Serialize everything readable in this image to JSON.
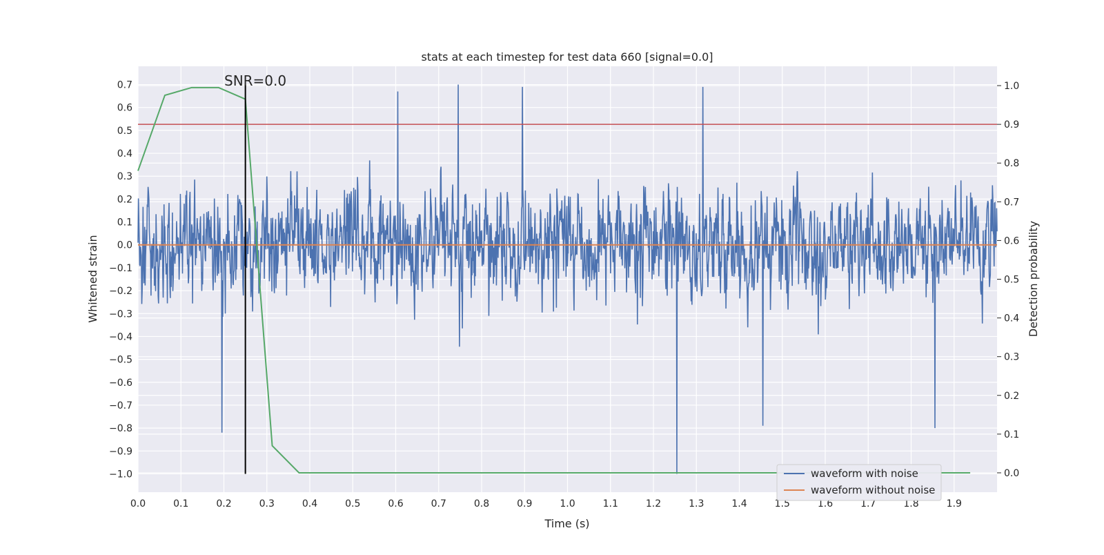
{
  "chart_data": {
    "type": "line",
    "title": "stats at each timestep for test data 660 [signal=0.0]",
    "xlabel": "Time (s)",
    "ylabel": "Whitened strain",
    "y2label": "Detection probability",
    "annotation": "SNR=0.0",
    "xlim": [
      0.0,
      2.0
    ],
    "ylim": [
      -1.08,
      0.78
    ],
    "y2lim": [
      -0.05,
      1.05
    ],
    "xticks": [
      0.0,
      0.1,
      0.2,
      0.3,
      0.4,
      0.5,
      0.6,
      0.7,
      0.8,
      0.9,
      1.0,
      1.1,
      1.2,
      1.3,
      1.4,
      1.5,
      1.6,
      1.7,
      1.8,
      1.9
    ],
    "xtick_labels": [
      "0.0",
      "0.1",
      "0.2",
      "0.3",
      "0.4",
      "0.5",
      "0.6",
      "0.7",
      "0.8",
      "0.9",
      "1.0",
      "1.1",
      "1.2",
      "1.3",
      "1.4",
      "1.5",
      "1.6",
      "1.7",
      "1.8",
      "1.9"
    ],
    "yticks": [
      0.7,
      0.6,
      0.5,
      0.4,
      0.3,
      0.2,
      0.1,
      0.0,
      -0.1,
      -0.2,
      -0.3,
      -0.4,
      -0.5,
      -0.6,
      -0.7,
      -0.8,
      -0.9,
      -1.0
    ],
    "ytick_labels": [
      "0.7",
      "0.6",
      "0.5",
      "0.4",
      "0.3",
      "0.2",
      "0.1",
      "0.0",
      "−0.1",
      "−0.2",
      "−0.3",
      "−0.4",
      "−0.5",
      "−0.6",
      "−0.7",
      "−0.8",
      "−0.9",
      "−1.0"
    ],
    "y2ticks": [
      1.0,
      0.9,
      0.8,
      0.7,
      0.6,
      0.5,
      0.4,
      0.3,
      0.2,
      0.1,
      0.0
    ],
    "y2tick_labels": [
      "1.0",
      "0.9",
      "0.8",
      "0.7",
      "0.6",
      "0.5",
      "0.4",
      "0.3",
      "0.2",
      "0.1",
      "0.0"
    ],
    "grid": true,
    "legend_position": "lower-right",
    "series": [
      {
        "name": "waveform with noise",
        "color": "#4c72b0",
        "axis": "left",
        "note_shape": "dense noise",
        "x_range": [
          0.0,
          2.0
        ],
        "n_points": 2048,
        "amplitude_std": 0.19,
        "peaks": [
          {
            "x": 0.195,
            "y": -0.82
          },
          {
            "x": 0.745,
            "y": 0.7
          },
          {
            "x": 0.895,
            "y": 0.69
          },
          {
            "x": 1.255,
            "y": -1.0
          },
          {
            "x": 1.455,
            "y": -0.79
          },
          {
            "x": 1.855,
            "y": -0.8
          },
          {
            "x": 1.315,
            "y": 0.69
          },
          {
            "x": 0.605,
            "y": 0.67
          }
        ]
      },
      {
        "name": "waveform without noise",
        "color": "#dd8452",
        "axis": "left",
        "x": [
          0.0,
          2.0
        ],
        "y": [
          0.0,
          0.0
        ]
      },
      {
        "name": "",
        "color": "#55a868",
        "axis": "right",
        "x": [
          0.0,
          0.0625,
          0.125,
          0.1875,
          0.25,
          0.3125,
          0.375,
          0.4375,
          0.5,
          1.0,
          1.5,
          1.9375
        ],
        "y": [
          0.78,
          0.975,
          0.995,
          0.995,
          0.965,
          0.07,
          0.0,
          0.0,
          0.0,
          0.0,
          0.0,
          0.0
        ]
      }
    ],
    "threshold": {
      "value": 0.9,
      "axis": "right",
      "color": "#c44e52"
    },
    "marker_line": {
      "x": 0.25,
      "y_from": -1.0,
      "y_to": 0.7,
      "color": "#000000"
    }
  }
}
